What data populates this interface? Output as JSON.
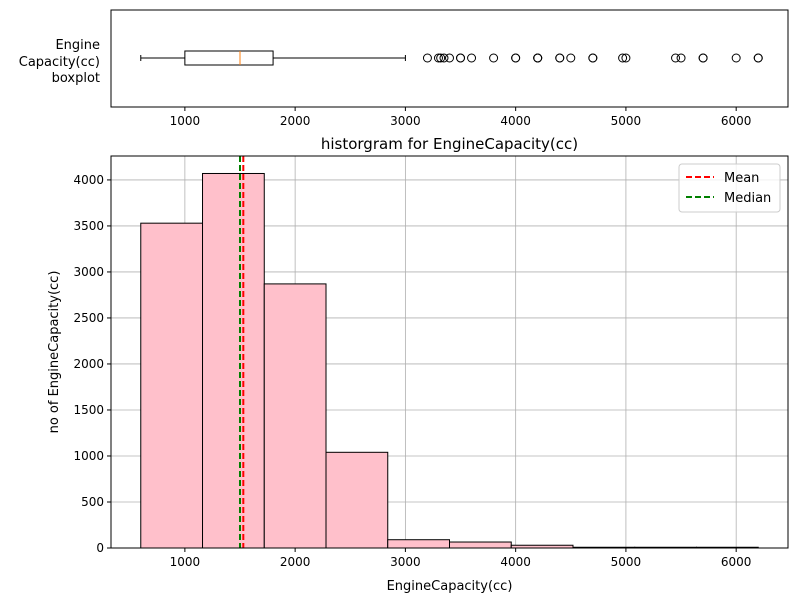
{
  "chart_data": [
    {
      "type": "boxplot",
      "ylabel_lines": [
        "Engine",
        "Capacity(cc)",
        "boxplot"
      ],
      "xlim": [
        330,
        6470
      ],
      "xticks": [
        1000,
        2000,
        3000,
        4000,
        5000,
        6000
      ],
      "stats": {
        "whisker_low": 600,
        "q1": 1000,
        "median": 1500,
        "q3": 1800,
        "whisker_high": 3000
      },
      "outliers": [
        3200,
        3300,
        3320,
        3350,
        3400,
        3500,
        3500,
        3600,
        3800,
        4000,
        4000,
        4200,
        4200,
        4200,
        4400,
        4400,
        4500,
        4700,
        4700,
        4970,
        5000,
        5450,
        5500,
        5700,
        5700,
        6000,
        6200,
        6200
      ],
      "colors": {
        "box": "#000000",
        "median": "#ff7f0e"
      }
    },
    {
      "type": "histogram",
      "title": "historgram for EngineCapacity(cc)",
      "xlabel": "EngineCapacity(cc)",
      "ylabel": "no of EngineCapacity(cc)",
      "xlim": [
        330,
        6470
      ],
      "ylim": [
        0,
        4260
      ],
      "xticks": [
        1000,
        2000,
        3000,
        4000,
        5000,
        6000
      ],
      "yticks": [
        0,
        500,
        1000,
        1500,
        2000,
        2500,
        3000,
        3500,
        4000
      ],
      "bins": [
        {
          "x0": 600,
          "x1": 1160,
          "count": 3530
        },
        {
          "x0": 1160,
          "x1": 1720,
          "count": 4070
        },
        {
          "x0": 1720,
          "x1": 2280,
          "count": 2870
        },
        {
          "x0": 2280,
          "x1": 2840,
          "count": 1040
        },
        {
          "x0": 2840,
          "x1": 3400,
          "count": 90
        },
        {
          "x0": 3400,
          "x1": 3960,
          "count": 65
        },
        {
          "x0": 3960,
          "x1": 4520,
          "count": 30
        },
        {
          "x0": 4520,
          "x1": 5080,
          "count": 8
        },
        {
          "x0": 5080,
          "x1": 5640,
          "count": 8
        },
        {
          "x0": 5640,
          "x1": 6200,
          "count": 8
        }
      ],
      "mean": 1530,
      "median": 1500,
      "grid": true,
      "legend_position": "top-right",
      "legend": [
        {
          "label": "Mean",
          "color": "#ff0000"
        },
        {
          "label": "Median",
          "color": "#008000"
        }
      ],
      "colors": {
        "bar_fill": "#ffc0cb",
        "bar_edge": "#000000",
        "grid": "#b0b0b0"
      }
    }
  ]
}
